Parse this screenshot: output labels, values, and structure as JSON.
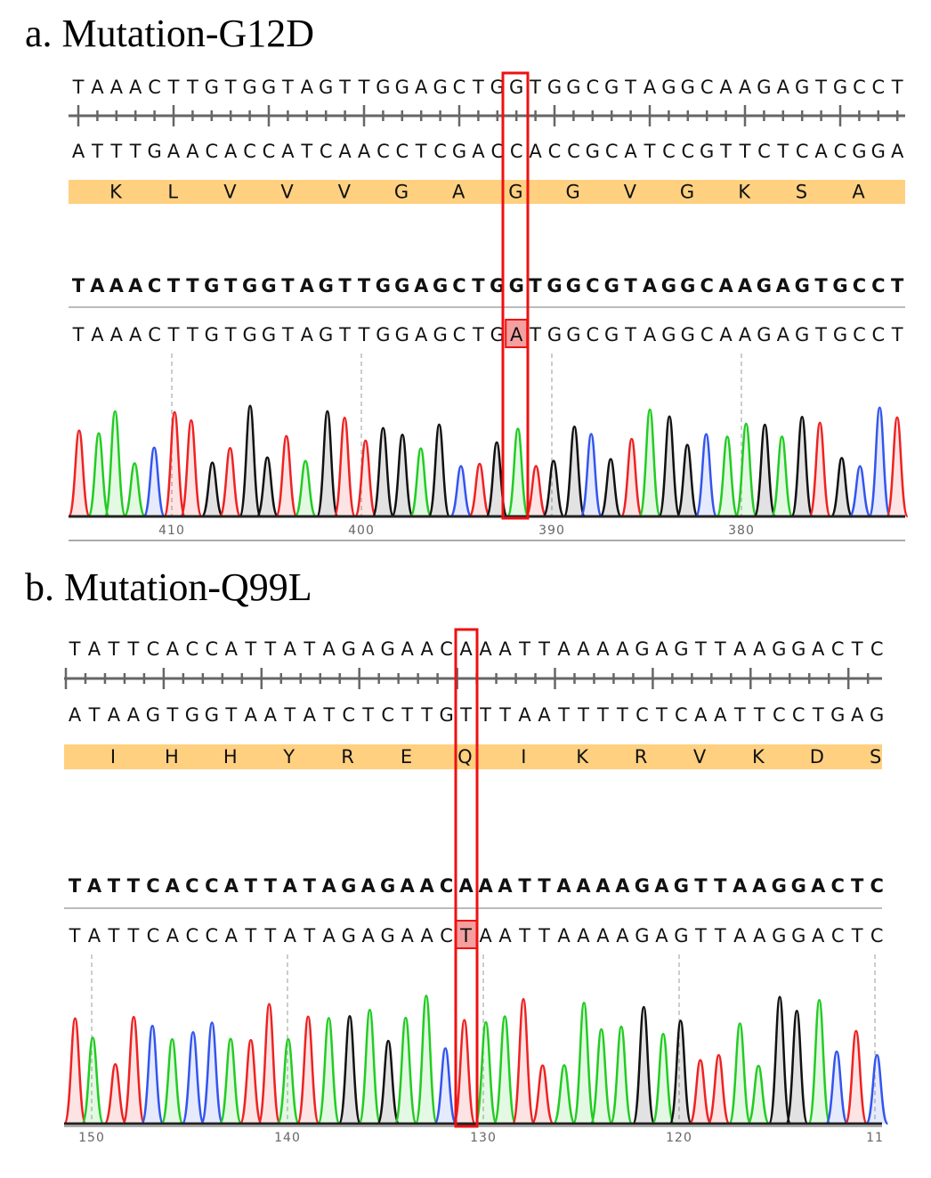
{
  "panels": [
    {
      "title": "a. Mutation-G12D",
      "reference": "TAAACTTGTGGTAGTTGGAGCTGGTGGCGTAGGCAAGAGTGCCT",
      "complement": "ATTTGAACACCATCAACCTCGACCACCGCATCCGTTCTCACGGA",
      "amino_acids": [
        "K",
        "L",
        "V",
        "V",
        "V",
        "G",
        "A",
        "G",
        "G",
        "V",
        "G",
        "K",
        "S",
        "A"
      ],
      "consensus": "TAAACTTGTGGTAGTTGGAGCTGGTGGCGTAGGCAAGAGTGCCT",
      "sample": "TAAACTTGTGGTAGTTGGAGCTGATGGCGTAGGCAAGAGTGCCT",
      "mutation_index": 23,
      "positions": [
        "410",
        "400",
        "390",
        "380"
      ]
    },
    {
      "title": "b. Mutation-Q99L",
      "reference": "TATTCACCATTATAGAGAACAAATTAAAAGAGTTAAGGACTC",
      "complement": "ATAAGTGGTAATATCTCTTGTTTAATTTTCTCAATTCCTGAG",
      "amino_acids": [
        "I",
        "H",
        "H",
        "Y",
        "R",
        "E",
        "Q",
        "I",
        "K",
        "R",
        "V",
        "K",
        "D",
        "S"
      ],
      "consensus": "TATTCACCATTATAGAGAACAAATTAAAAGAGTTAAGGACTC",
      "sample": "TATTCACCATTATAGAGAACTAATTAAAAGAGTTAAGGACTC",
      "mutation_index": 20,
      "positions": [
        "150",
        "140",
        "130",
        "120",
        "11"
      ]
    }
  ],
  "colors": {
    "A": "#22cc22",
    "C": "#3355ee",
    "G": "#111111",
    "T": "#ee2222",
    "highlight": "#ffd080",
    "box": "#ee1111",
    "mutant_fill": "#f4a0a0"
  }
}
